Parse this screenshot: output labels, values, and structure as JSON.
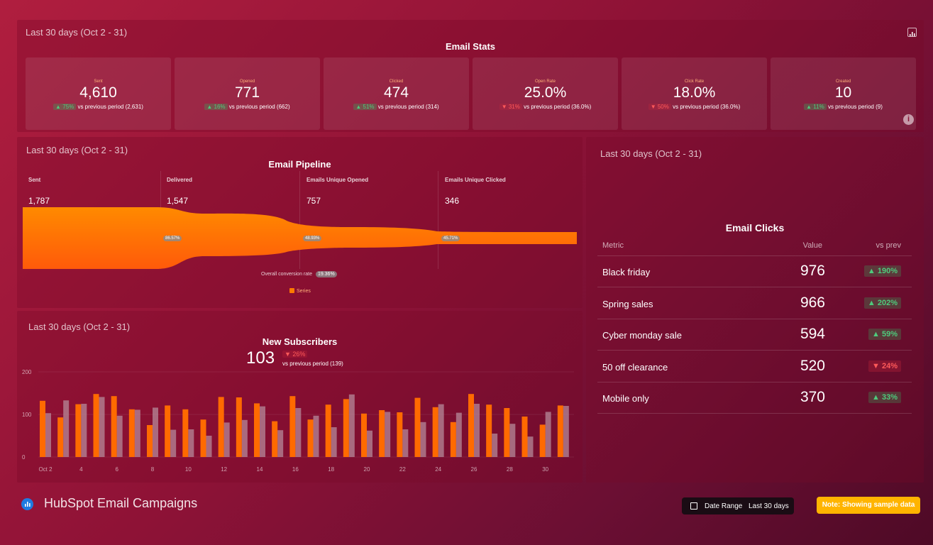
{
  "stats": {
    "period": "Last 30 days (Oct 2 - 31)",
    "title": "Email Stats",
    "icon": "chart-icon",
    "cards": [
      {
        "label": "Sent",
        "value": "4,610",
        "delta": "▲ 75%",
        "dir": "up",
        "compare": "vs previous period (2,631)"
      },
      {
        "label": "Opened",
        "value": "771",
        "delta": "▲ 16%",
        "dir": "up",
        "compare": "vs previous period (662)"
      },
      {
        "label": "Clicked",
        "value": "474",
        "delta": "▲ 51%",
        "dir": "up",
        "compare": "vs previous period (314)"
      },
      {
        "label": "Open Rate",
        "value": "25.0%",
        "delta": "▼ 31%",
        "dir": "down",
        "compare": "vs previous period (36.0%)"
      },
      {
        "label": "Click Rate",
        "value": "18.0%",
        "delta": "▼ 50%",
        "dir": "down",
        "compare": "vs previous period (36.0%)"
      },
      {
        "label": "Created",
        "value": "10",
        "delta": "▲ 11%",
        "dir": "up",
        "compare": "vs previous period (9)"
      }
    ]
  },
  "pipeline": {
    "period": "Last 30 days (Oct 2 - 31)",
    "title": "Email Pipeline",
    "columns": [
      {
        "label": "Sent",
        "value": "1,787"
      },
      {
        "label": "Delivered",
        "value": "1,547"
      },
      {
        "label": "Emails Unique Opened",
        "value": "757"
      },
      {
        "label": "Emails Unique Clicked",
        "value": "346"
      }
    ],
    "rates": [
      "86.57%",
      "48.93%",
      "45.71%"
    ],
    "conversion_label": "Overall conversion rate",
    "conversion_value": "19.36%",
    "legend": "Series",
    "color": "#ff7a00"
  },
  "subscribers": {
    "period": "Last 30 days (Oct 2 - 31)",
    "title": "New Subscribers",
    "value": "103",
    "delta": "▼ 26%",
    "compare": "vs previous period (139)"
  },
  "chart_data": {
    "type": "bar",
    "ylim": [
      0,
      200
    ],
    "yticks": [
      "200",
      "100",
      "0"
    ],
    "xtick_labels": [
      "Oct 2",
      "4",
      "6",
      "8",
      "10",
      "12",
      "14",
      "16",
      "18",
      "20",
      "22",
      "24",
      "26",
      "28",
      "30"
    ],
    "series": [
      {
        "values": [
          132,
          93,
          124,
          148,
          143,
          112,
          75,
          121,
          112,
          88,
          141,
          140,
          126,
          84,
          143,
          88,
          123,
          136,
          102,
          110,
          105,
          139,
          117,
          82,
          148,
          123,
          115,
          95,
          76,
          121
        ]
      },
      {
        "values": [
          103,
          133,
          125,
          141,
          97,
          111,
          116,
          64,
          65,
          50,
          81,
          87,
          119,
          63,
          115,
          97,
          70,
          147,
          62,
          106,
          65,
          82,
          124,
          104,
          125,
          55,
          78,
          48,
          106,
          120
        ]
      }
    ],
    "colors": [
      "#ff6a00",
      "#b58a9a"
    ]
  },
  "clicks": {
    "period": "Last 30 days (Oct 2 - 31)",
    "title": "Email Clicks",
    "headers": {
      "metric": "Metric",
      "value": "Value",
      "vs": "vs prev"
    },
    "rows": [
      {
        "metric": "Black friday",
        "value": "976",
        "delta": "▲ 190%",
        "dir": "up"
      },
      {
        "metric": "Spring sales",
        "value": "966",
        "delta": "▲ 202%",
        "dir": "up"
      },
      {
        "metric": "Cyber monday sale",
        "value": "594",
        "delta": "▲ 59%",
        "dir": "up"
      },
      {
        "metric": "50 off clearance",
        "value": "520",
        "delta": "▼ 24%",
        "dir": "down"
      },
      {
        "metric": "Mobile only",
        "value": "370",
        "delta": "▲ 33%",
        "dir": "up"
      }
    ]
  },
  "footer": {
    "title": "HubSpot Email Campaigns",
    "date_range_label": "Date Range",
    "date_range_value": "Last 30 days",
    "note": "Note: Showing sample data"
  }
}
